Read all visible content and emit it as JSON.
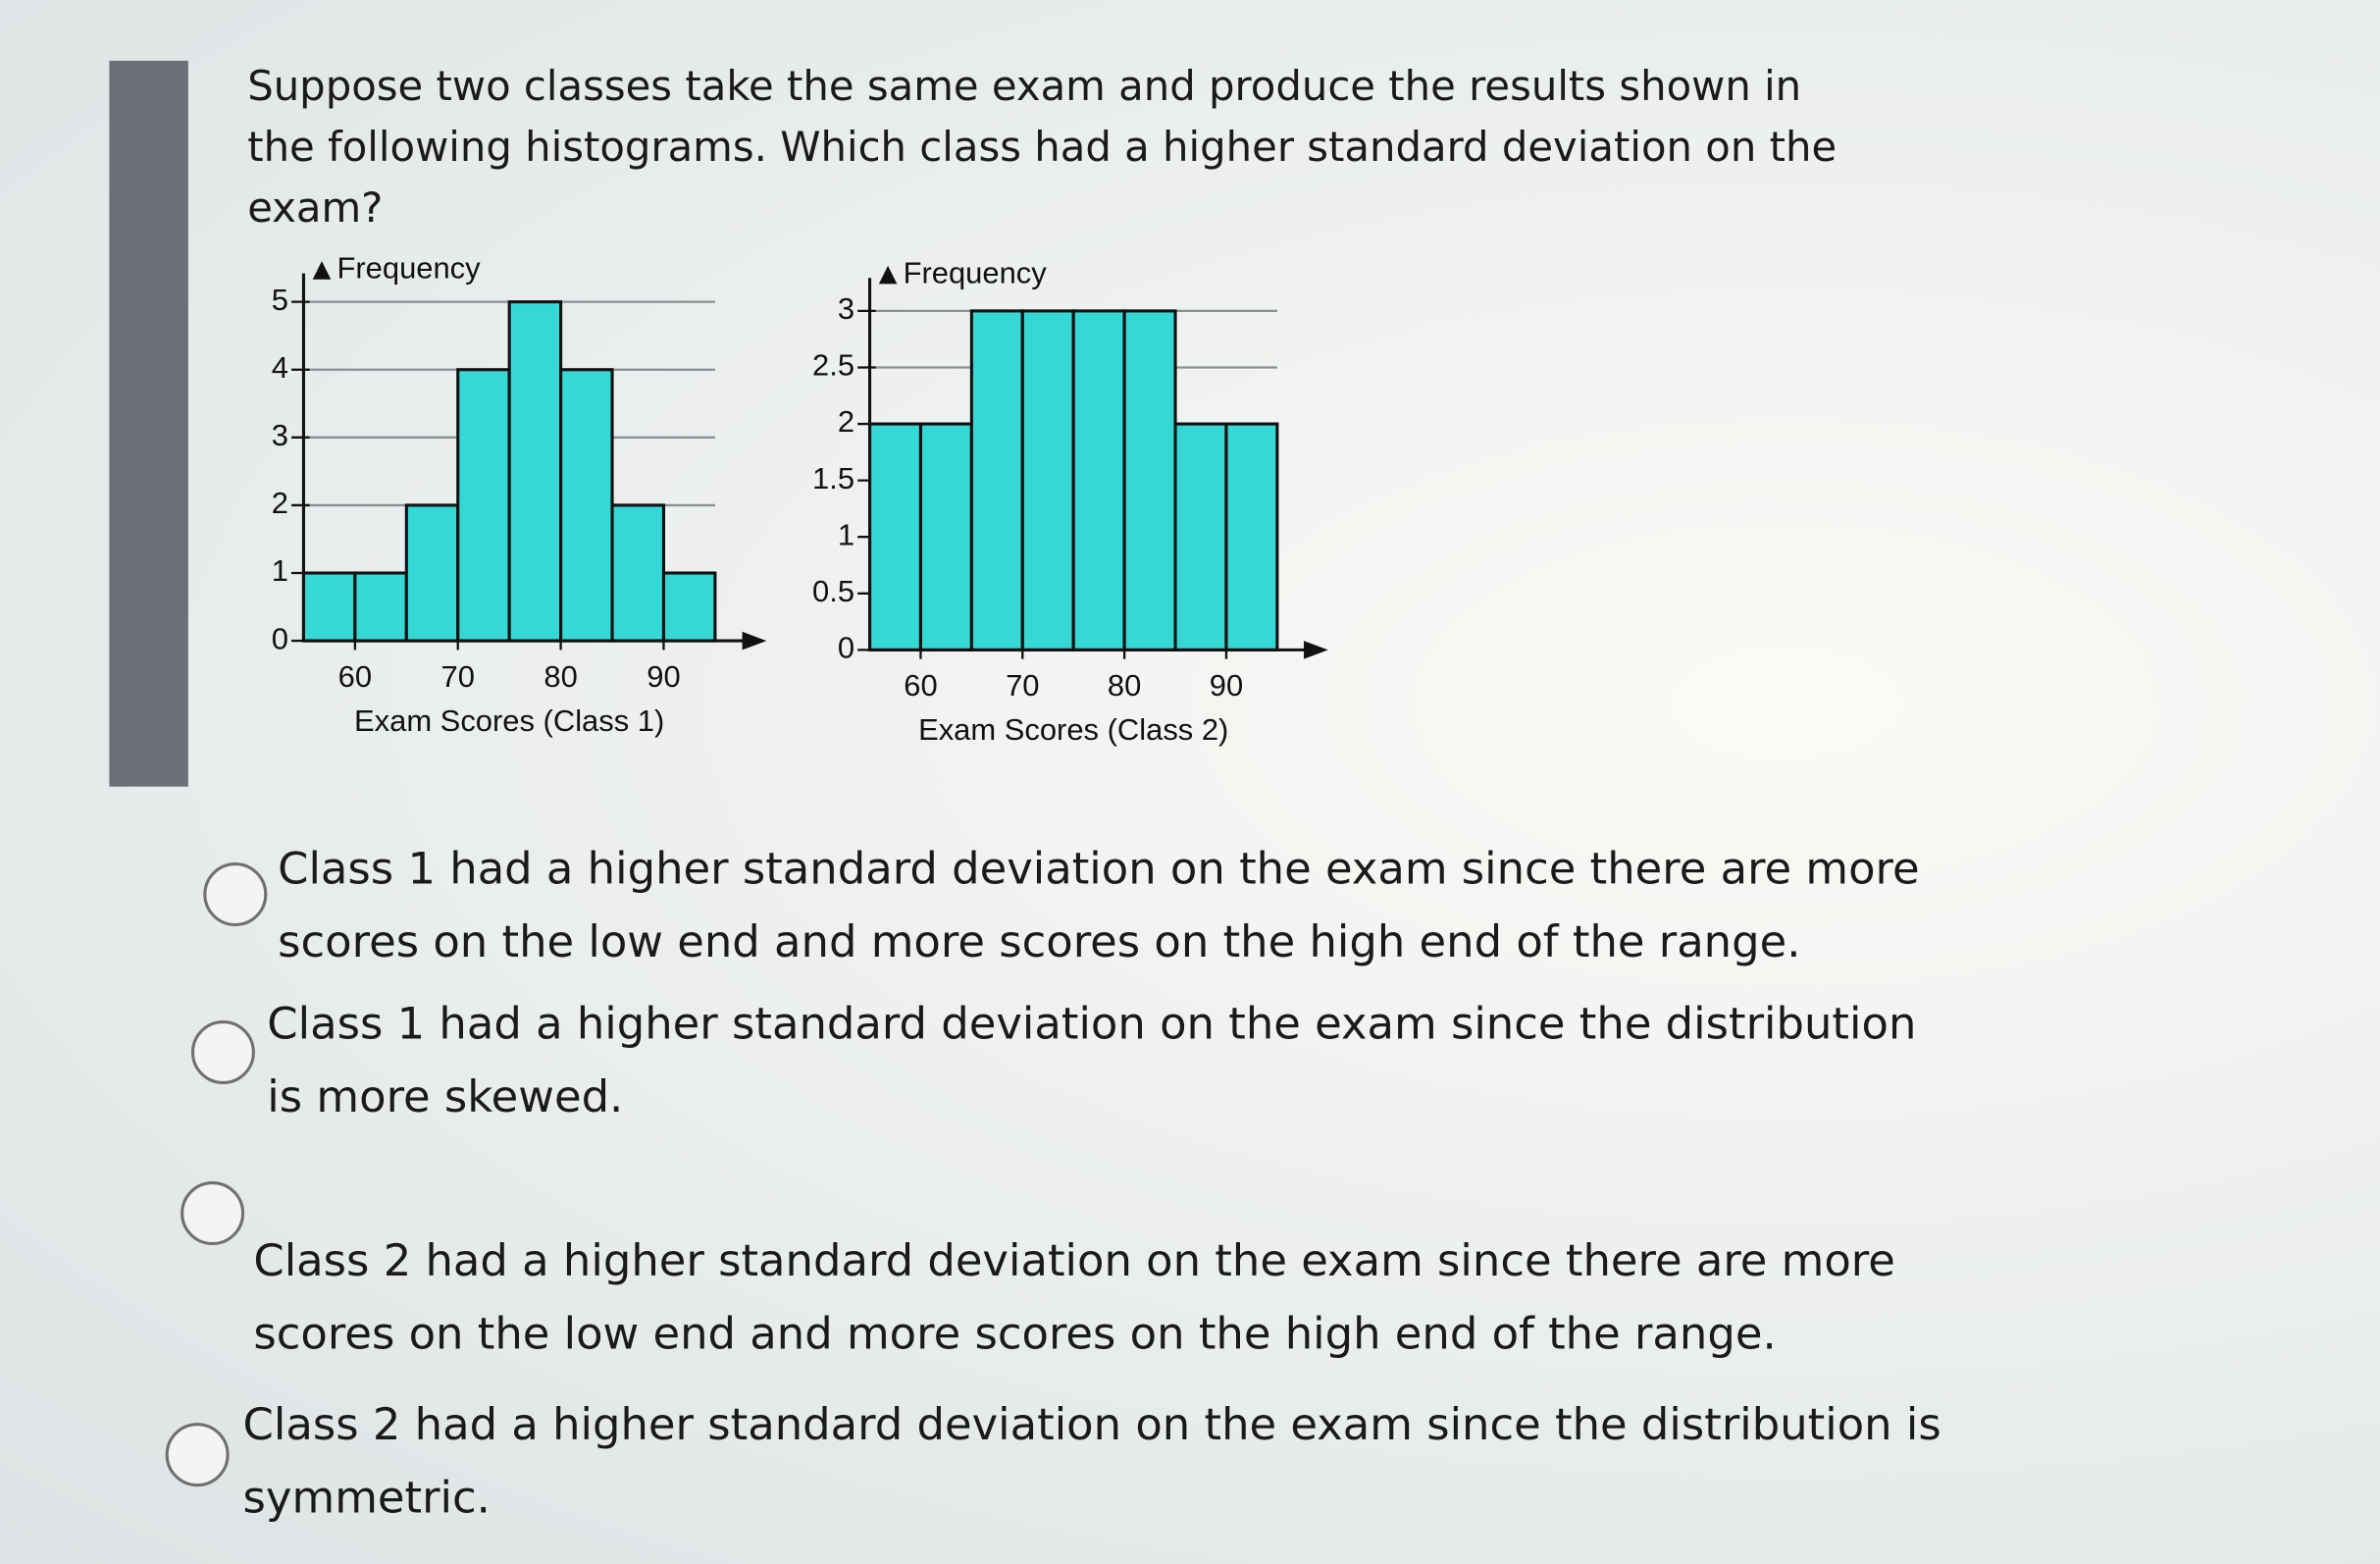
{
  "question": "Suppose two classes take the same exam and produce the results shown in the following histograms. Which class had a higher standard deviation on the exam?",
  "chart_data": [
    {
      "type": "histogram",
      "y_label": "Frequency",
      "x_label": "Exam Scores (Class 1)",
      "bins": [
        55,
        60,
        65,
        70,
        75,
        80,
        85,
        90,
        95
      ],
      "counts": [
        1,
        1,
        2,
        4,
        5,
        4,
        2,
        1
      ],
      "color": "#35d8d4",
      "xlim": [
        55,
        100
      ],
      "xticks": [
        60,
        70,
        80,
        90
      ],
      "ylim": [
        0,
        5.6
      ],
      "yticks": [
        0,
        1,
        2,
        3,
        4,
        5
      ],
      "grid": true
    },
    {
      "type": "histogram",
      "y_label": "Frequency",
      "x_label": "Exam Scores (Class 2)",
      "bins": [
        55,
        60,
        65,
        70,
        75,
        80,
        85,
        90,
        95
      ],
      "counts": [
        2,
        2,
        3,
        3,
        3,
        3,
        2,
        2
      ],
      "color": "#35d8d4",
      "xlim": [
        55,
        100
      ],
      "xticks": [
        60,
        70,
        80,
        90
      ],
      "ylim": [
        0,
        3.4
      ],
      "yticks": [
        0,
        0.5,
        1,
        1.5,
        2,
        2.5,
        3
      ],
      "grid": true
    }
  ],
  "options": [
    "Class 1 had a higher standard deviation on the exam since there are more scores on the low end and more scores on the high end of the range.",
    "Class 1 had a higher standard deviation on the exam since the distribution is more skewed.",
    "Class 2 had a higher standard deviation on the exam since there are more scores on the low end and more scores on the high end of the range.",
    "Class 2 had a higher standard deviation on the exam since the distribution is symmetric."
  ]
}
